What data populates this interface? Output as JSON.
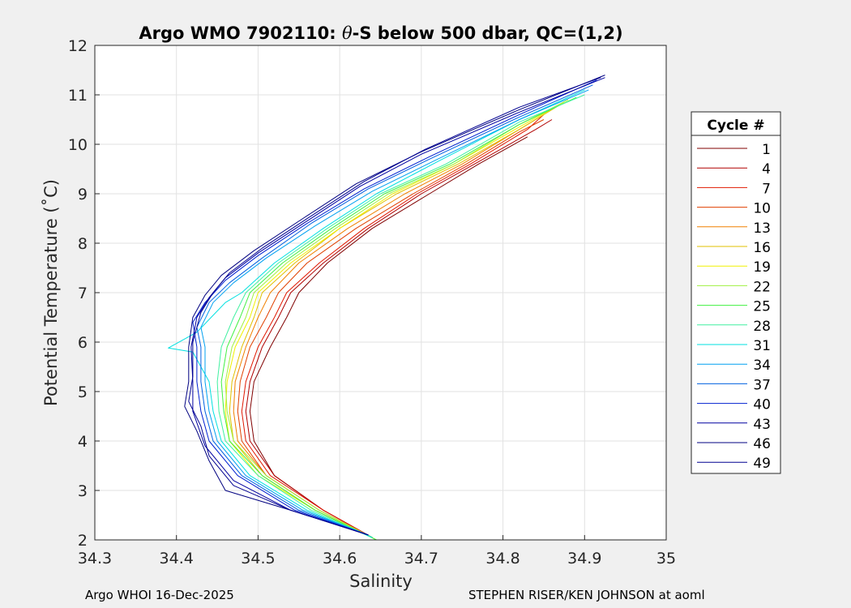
{
  "chart_data": {
    "type": "line",
    "title_prefix": "Argo WMO 7902110: ",
    "title_symbol": "θ",
    "title_suffix": "-S below 500 dbar,  QC=(1,2)",
    "xlabel": "Salinity",
    "ylabel": "Potential Temperature (˚C)",
    "xlim": [
      34.3,
      35
    ],
    "ylim": [
      2,
      12
    ],
    "xticks": [
      "34.3",
      "34.4",
      "34.5",
      "34.6",
      "34.7",
      "34.8",
      "34.9",
      "35"
    ],
    "yticks": [
      "2",
      "3",
      "4",
      "5",
      "6",
      "7",
      "8",
      "9",
      "10",
      "11",
      "12"
    ],
    "grid": true,
    "legend": {
      "title": "Cycle #",
      "placement": "outside-right",
      "entries": [
        {
          "label": "1",
          "color": "#800000"
        },
        {
          "label": "4",
          "color": "#b00000"
        },
        {
          "label": "7",
          "color": "#e01800"
        },
        {
          "label": "10",
          "color": "#e04000"
        },
        {
          "label": "13",
          "color": "#f08000"
        },
        {
          "label": "16",
          "color": "#e0c000"
        },
        {
          "label": "19",
          "color": "#f0f000"
        },
        {
          "label": "22",
          "color": "#a0f040"
        },
        {
          "label": "25",
          "color": "#40f040"
        },
        {
          "label": "28",
          "color": "#40f0a0"
        },
        {
          "label": "31",
          "color": "#00e0e0"
        },
        {
          "label": "34",
          "color": "#00a0f0"
        },
        {
          "label": "37",
          "color": "#0060e0"
        },
        {
          "label": "40",
          "color": "#0020d0"
        },
        {
          "label": "43",
          "color": "#0000a0"
        },
        {
          "label": "46",
          "color": "#000080"
        },
        {
          "label": "49",
          "color": "#000090"
        }
      ]
    },
    "series": [
      {
        "name": "1",
        "color": "#800000",
        "points": [
          [
            34.64,
            2.05
          ],
          [
            34.58,
            2.6
          ],
          [
            34.52,
            3.3
          ],
          [
            34.495,
            4.0
          ],
          [
            34.49,
            4.6
          ],
          [
            34.495,
            5.2
          ],
          [
            34.515,
            5.9
          ],
          [
            34.535,
            6.5
          ],
          [
            34.55,
            7.0
          ],
          [
            34.585,
            7.6
          ],
          [
            34.64,
            8.3
          ],
          [
            34.71,
            9.0
          ],
          [
            34.77,
            9.6
          ],
          [
            34.83,
            10.15
          ]
        ]
      },
      {
        "name": "4",
        "color": "#b00000",
        "points": [
          [
            34.64,
            2.05
          ],
          [
            34.58,
            2.6
          ],
          [
            34.52,
            3.3
          ],
          [
            34.49,
            4.0
          ],
          [
            34.485,
            4.6
          ],
          [
            34.49,
            5.2
          ],
          [
            34.505,
            5.9
          ],
          [
            34.525,
            6.5
          ],
          [
            34.54,
            7.0
          ],
          [
            34.58,
            7.6
          ],
          [
            34.635,
            8.3
          ],
          [
            34.7,
            9.0
          ],
          [
            34.765,
            9.6
          ],
          [
            34.84,
            10.3
          ],
          [
            34.86,
            10.5
          ]
        ]
      },
      {
        "name": "7",
        "color": "#e01800",
        "points": [
          [
            34.64,
            2.05
          ],
          [
            34.58,
            2.6
          ],
          [
            34.515,
            3.3
          ],
          [
            34.485,
            4.0
          ],
          [
            34.48,
            4.6
          ],
          [
            34.485,
            5.2
          ],
          [
            34.5,
            5.9
          ],
          [
            34.52,
            6.5
          ],
          [
            34.535,
            7.0
          ],
          [
            34.575,
            7.6
          ],
          [
            34.63,
            8.3
          ],
          [
            34.695,
            9.0
          ],
          [
            34.76,
            9.6
          ],
          [
            34.83,
            10.3
          ],
          [
            34.85,
            10.6
          ]
        ]
      },
      {
        "name": "10",
        "color": "#e04000",
        "points": [
          [
            34.64,
            2.05
          ],
          [
            34.575,
            2.6
          ],
          [
            34.51,
            3.3
          ],
          [
            34.48,
            4.0
          ],
          [
            34.475,
            4.6
          ],
          [
            34.478,
            5.2
          ],
          [
            34.49,
            5.9
          ],
          [
            34.51,
            6.5
          ],
          [
            34.525,
            7.0
          ],
          [
            34.56,
            7.6
          ],
          [
            34.62,
            8.3
          ],
          [
            34.69,
            9.0
          ],
          [
            34.755,
            9.6
          ],
          [
            34.82,
            10.25
          ],
          [
            34.85,
            10.5
          ]
        ]
      },
      {
        "name": "13",
        "color": "#f08000",
        "points": [
          [
            34.64,
            2.05
          ],
          [
            34.575,
            2.6
          ],
          [
            34.51,
            3.3
          ],
          [
            34.475,
            4.0
          ],
          [
            34.47,
            4.6
          ],
          [
            34.472,
            5.2
          ],
          [
            34.485,
            5.9
          ],
          [
            34.5,
            6.5
          ],
          [
            34.515,
            7.0
          ],
          [
            34.55,
            7.6
          ],
          [
            34.61,
            8.3
          ],
          [
            34.68,
            9.0
          ],
          [
            34.75,
            9.6
          ],
          [
            34.82,
            10.3
          ],
          [
            34.85,
            10.6
          ]
        ]
      },
      {
        "name": "16",
        "color": "#e0c000",
        "points": [
          [
            34.64,
            2.05
          ],
          [
            34.57,
            2.6
          ],
          [
            34.505,
            3.3
          ],
          [
            34.47,
            4.0
          ],
          [
            34.465,
            4.6
          ],
          [
            34.468,
            5.2
          ],
          [
            34.48,
            5.9
          ],
          [
            34.495,
            6.5
          ],
          [
            34.505,
            7.0
          ],
          [
            34.545,
            7.6
          ],
          [
            34.6,
            8.3
          ],
          [
            34.67,
            9.0
          ],
          [
            34.745,
            9.6
          ],
          [
            34.82,
            10.3
          ],
          [
            34.87,
            10.8
          ]
        ]
      },
      {
        "name": "19",
        "color": "#f0f000",
        "points": [
          [
            34.64,
            2.05
          ],
          [
            34.57,
            2.6
          ],
          [
            34.5,
            3.3
          ],
          [
            34.465,
            4.0
          ],
          [
            34.46,
            4.6
          ],
          [
            34.462,
            5.2
          ],
          [
            34.472,
            5.9
          ],
          [
            34.49,
            6.5
          ],
          [
            34.5,
            7.0
          ],
          [
            34.54,
            7.6
          ],
          [
            34.6,
            8.3
          ],
          [
            34.665,
            9.0
          ],
          [
            34.74,
            9.6
          ],
          [
            34.82,
            10.35
          ],
          [
            34.875,
            10.85
          ]
        ]
      },
      {
        "name": "22",
        "color": "#a0f040",
        "points": [
          [
            34.645,
            2.0
          ],
          [
            34.575,
            2.6
          ],
          [
            34.51,
            3.3
          ],
          [
            34.47,
            4.0
          ],
          [
            34.462,
            4.6
          ],
          [
            34.46,
            5.2
          ],
          [
            34.468,
            5.9
          ],
          [
            34.485,
            6.5
          ],
          [
            34.495,
            7.0
          ],
          [
            34.535,
            7.6
          ],
          [
            34.595,
            8.3
          ],
          [
            34.66,
            9.0
          ],
          [
            34.74,
            9.6
          ],
          [
            34.82,
            10.4
          ],
          [
            34.88,
            10.9
          ]
        ]
      },
      {
        "name": "25",
        "color": "#40f040",
        "points": [
          [
            34.645,
            2.0
          ],
          [
            34.57,
            2.6
          ],
          [
            34.505,
            3.3
          ],
          [
            34.465,
            4.0
          ],
          [
            34.458,
            4.6
          ],
          [
            34.455,
            5.2
          ],
          [
            34.462,
            5.9
          ],
          [
            34.478,
            6.5
          ],
          [
            34.49,
            7.0
          ],
          [
            34.53,
            7.6
          ],
          [
            34.59,
            8.3
          ],
          [
            34.655,
            9.0
          ],
          [
            34.735,
            9.6
          ],
          [
            34.82,
            10.4
          ],
          [
            34.89,
            10.95
          ]
        ]
      },
      {
        "name": "28",
        "color": "#40f0a0",
        "points": [
          [
            34.64,
            2.05
          ],
          [
            34.565,
            2.6
          ],
          [
            34.5,
            3.3
          ],
          [
            34.46,
            4.0
          ],
          [
            34.452,
            4.6
          ],
          [
            34.45,
            5.2
          ],
          [
            34.455,
            5.9
          ],
          [
            34.47,
            6.5
          ],
          [
            34.485,
            7.0
          ],
          [
            34.525,
            7.6
          ],
          [
            34.585,
            8.3
          ],
          [
            34.65,
            9.0
          ],
          [
            34.73,
            9.6
          ],
          [
            34.82,
            10.45
          ],
          [
            34.9,
            11.0
          ]
        ]
      },
      {
        "name": "31",
        "color": "#00e0e0",
        "points": [
          [
            34.64,
            2.05
          ],
          [
            34.56,
            2.6
          ],
          [
            34.49,
            3.3
          ],
          [
            34.455,
            4.0
          ],
          [
            34.445,
            4.6
          ],
          [
            34.44,
            5.2
          ],
          [
            34.42,
            5.8
          ],
          [
            34.39,
            5.88
          ],
          [
            34.425,
            6.2
          ],
          [
            34.46,
            6.8
          ],
          [
            34.48,
            7.0
          ],
          [
            34.52,
            7.6
          ],
          [
            34.58,
            8.3
          ],
          [
            34.645,
            9.0
          ],
          [
            34.72,
            9.65
          ],
          [
            34.82,
            10.5
          ],
          [
            34.9,
            11.1
          ]
        ]
      },
      {
        "name": "34",
        "color": "#00a0f0",
        "points": [
          [
            34.635,
            2.1
          ],
          [
            34.555,
            2.6
          ],
          [
            34.485,
            3.3
          ],
          [
            34.45,
            4.0
          ],
          [
            34.44,
            4.6
          ],
          [
            34.435,
            5.2
          ],
          [
            34.435,
            5.9
          ],
          [
            34.43,
            6.3
          ],
          [
            34.445,
            6.8
          ],
          [
            34.47,
            7.2
          ],
          [
            34.51,
            7.7
          ],
          [
            34.57,
            8.35
          ],
          [
            34.64,
            9.05
          ],
          [
            34.72,
            9.7
          ],
          [
            34.82,
            10.5
          ],
          [
            34.905,
            11.1
          ]
        ]
      },
      {
        "name": "37",
        "color": "#0060e0",
        "points": [
          [
            34.635,
            2.1
          ],
          [
            34.55,
            2.6
          ],
          [
            34.48,
            3.3
          ],
          [
            34.445,
            4.0
          ],
          [
            34.435,
            4.6
          ],
          [
            34.43,
            5.2
          ],
          [
            34.43,
            5.9
          ],
          [
            34.425,
            6.3
          ],
          [
            34.44,
            6.8
          ],
          [
            34.465,
            7.2
          ],
          [
            34.505,
            7.7
          ],
          [
            34.565,
            8.4
          ],
          [
            34.635,
            9.1
          ],
          [
            34.71,
            9.7
          ],
          [
            34.82,
            10.55
          ],
          [
            34.91,
            11.2
          ]
        ]
      },
      {
        "name": "40",
        "color": "#0020d0",
        "points": [
          [
            34.635,
            2.1
          ],
          [
            34.545,
            2.6
          ],
          [
            34.475,
            3.3
          ],
          [
            34.44,
            4.0
          ],
          [
            34.43,
            4.6
          ],
          [
            34.425,
            5.2
          ],
          [
            34.425,
            5.9
          ],
          [
            34.42,
            6.4
          ],
          [
            34.435,
            6.8
          ],
          [
            34.46,
            7.25
          ],
          [
            34.5,
            7.75
          ],
          [
            34.56,
            8.4
          ],
          [
            34.63,
            9.1
          ],
          [
            34.71,
            9.75
          ],
          [
            34.82,
            10.6
          ],
          [
            34.915,
            11.3
          ]
        ]
      },
      {
        "name": "43",
        "color": "#0000a0",
        "points": [
          [
            34.635,
            2.1
          ],
          [
            34.54,
            2.6
          ],
          [
            34.47,
            3.2
          ],
          [
            34.435,
            3.9
          ],
          [
            34.42,
            4.6
          ],
          [
            34.42,
            5.2
          ],
          [
            34.418,
            5.9
          ],
          [
            34.425,
            6.5
          ],
          [
            34.44,
            6.9
          ],
          [
            34.46,
            7.3
          ],
          [
            34.5,
            7.8
          ],
          [
            34.56,
            8.45
          ],
          [
            34.625,
            9.15
          ],
          [
            34.7,
            9.8
          ],
          [
            34.82,
            10.65
          ],
          [
            34.925,
            11.35
          ]
        ]
      },
      {
        "name": "46",
        "color": "#000080",
        "points": [
          [
            34.635,
            2.1
          ],
          [
            34.54,
            2.6
          ],
          [
            34.46,
            3.0
          ],
          [
            34.44,
            3.6
          ],
          [
            34.425,
            4.2
          ],
          [
            34.41,
            4.7
          ],
          [
            34.415,
            5.2
          ],
          [
            34.415,
            5.9
          ],
          [
            34.42,
            6.5
          ],
          [
            34.435,
            6.95
          ],
          [
            34.455,
            7.35
          ],
          [
            34.495,
            7.85
          ],
          [
            34.555,
            8.5
          ],
          [
            34.62,
            9.2
          ],
          [
            34.7,
            9.85
          ],
          [
            34.82,
            10.7
          ],
          [
            34.925,
            11.4
          ]
        ]
      },
      {
        "name": "49",
        "color": "#000090",
        "points": [
          [
            34.635,
            2.1
          ],
          [
            34.54,
            2.6
          ],
          [
            34.47,
            3.1
          ],
          [
            34.44,
            3.7
          ],
          [
            34.43,
            4.3
          ],
          [
            34.415,
            4.8
          ],
          [
            34.42,
            5.3
          ],
          [
            34.42,
            6.0
          ],
          [
            34.43,
            6.6
          ],
          [
            34.445,
            7.0
          ],
          [
            34.465,
            7.4
          ],
          [
            34.505,
            7.9
          ],
          [
            34.565,
            8.55
          ],
          [
            34.63,
            9.25
          ],
          [
            34.705,
            9.9
          ],
          [
            34.82,
            10.75
          ],
          [
            34.92,
            11.35
          ]
        ]
      }
    ]
  },
  "footer": {
    "left": "Argo WHOI 16-Dec-2025",
    "right": "STEPHEN RISER/KEN JOHNSON at aoml"
  }
}
